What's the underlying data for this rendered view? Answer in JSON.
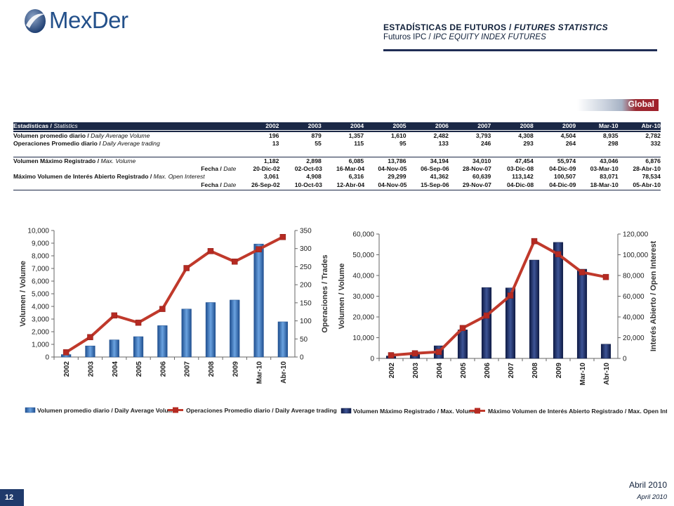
{
  "logo": {
    "text": "MexDer"
  },
  "header": {
    "title_es": "ESTADÍSTICAS DE FUTUROS",
    "title_en": "FUTURES STATISTICS",
    "subtitle_es": "Futuros IPC",
    "subtitle_en": "IPC EQUITY INDEX FUTURES",
    "separator": " / "
  },
  "global_tab": "Global",
  "stats_table": {
    "header_label_es": "Estadísticas / ",
    "header_label_en": "Statistics",
    "columns": [
      "2002",
      "2003",
      "2004",
      "2005",
      "2006",
      "2007",
      "2008",
      "2009",
      "Mar-10",
      "Abr-10"
    ],
    "rows": [
      {
        "label_es": "Volumen promedio diario / ",
        "label_en": "Daily Average Volume",
        "values": [
          "196",
          "879",
          "1,357",
          "1,610",
          "2,482",
          "3,793",
          "4,308",
          "4,504",
          "8,935",
          "2,782"
        ]
      },
      {
        "label_es": "Operaciones Promedio diario / ",
        "label_en": "Daily Average trading",
        "values": [
          "13",
          "55",
          "115",
          "95",
          "133",
          "246",
          "293",
          "264",
          "298",
          "332"
        ]
      },
      {
        "label_es": "Volumen Máximo Registrado / ",
        "label_en": "Max. Volume",
        "values": [
          "1,182",
          "2,898",
          "6,085",
          "13,786",
          "34,194",
          "34,010",
          "47,454",
          "55,974",
          "43,046",
          "6,876"
        ]
      },
      {
        "label_es": "Fecha / ",
        "label_en": "Date",
        "values": [
          "20-Dic-02",
          "02-Oct-03",
          "16-Mar-04",
          "04-Nov-05",
          "06-Sep-06",
          "28-Nov-07",
          "03-Dic-08",
          "04-Dic-09",
          "03-Mar-10",
          "28-Abr-10"
        ]
      },
      {
        "label_es": "Máximo Volumen de Interés Abierto Registrado / ",
        "label_en": "Max. Open Interest",
        "values": [
          "3,061",
          "4,908",
          "6,316",
          "29,299",
          "41,362",
          "60,639",
          "113,142",
          "100,507",
          "83,071",
          "78,534"
        ]
      },
      {
        "label_es": "Fecha / ",
        "label_en": "Date",
        "values": [
          "26-Sep-02",
          "10-Oct-03",
          "12-Abr-04",
          "04-Nov-05",
          "15-Sep-06",
          "29-Nov-07",
          "04-Dic-08",
          "04-Dic-09",
          "18-Mar-10",
          "05-Abr-10"
        ]
      }
    ]
  },
  "chart_data": [
    {
      "type": "bar",
      "categories": [
        "2002",
        "2003",
        "2004",
        "2005",
        "2006",
        "2007",
        "2008",
        "2009",
        "Mar-10",
        "Abr-10"
      ],
      "series": [
        {
          "name": "Volumen promedio diario / Daily Average Volume",
          "kind": "bar",
          "axis": "left",
          "values": [
            196,
            879,
            1357,
            1610,
            2482,
            3793,
            4308,
            4504,
            8935,
            2782
          ]
        },
        {
          "name": "Operaciones Promedio diario / Daily Average trading",
          "kind": "line",
          "axis": "right",
          "values": [
            13,
            55,
            115,
            95,
            133,
            246,
            293,
            264,
            298,
            332
          ]
        }
      ],
      "ylabel": "Volumen / Volume",
      "y2label": "Operaciones / Trades",
      "ylim": [
        0,
        10000
      ],
      "y2lim": [
        0,
        350
      ],
      "yticks": [
        "0",
        "1,000",
        "2,000",
        "3,000",
        "4,000",
        "5,000",
        "6,000",
        "7,000",
        "8,000",
        "9,000",
        "10,000"
      ],
      "y2ticks": [
        "0",
        "50",
        "100",
        "150",
        "200",
        "250",
        "300",
        "350"
      ],
      "legend_position": "bottom",
      "colors": {
        "bar": "#2e6fb8",
        "line": "#c0392b"
      }
    },
    {
      "type": "bar",
      "categories": [
        "2002",
        "2003",
        "2004",
        "2005",
        "2006",
        "2007",
        "2008",
        "2009",
        "Mar-10",
        "Abr-10"
      ],
      "series": [
        {
          "name": "Volumen Máximo Registrado / Max. Volume",
          "kind": "bar",
          "axis": "left",
          "values": [
            1182,
            2898,
            6085,
            13786,
            34194,
            34010,
            47454,
            55974,
            43046,
            6876
          ]
        },
        {
          "name": "Máximo Volumen de Interés Abierto Registrado / Max. Open Interes",
          "kind": "line",
          "axis": "right",
          "values": [
            3061,
            4908,
            6316,
            29299,
            41362,
            60639,
            113142,
            100507,
            83071,
            78534
          ]
        }
      ],
      "ylabel": "Volumen / Volume",
      "y2label": "Interés Abierto / Open Interest",
      "ylim": [
        0,
        60000
      ],
      "y2lim": [
        0,
        120000
      ],
      "yticks": [
        "0",
        "10,000",
        "20,000",
        "30,000",
        "40,000",
        "50,000",
        "60,000"
      ],
      "y2ticks": [
        "0",
        "20,000",
        "40,000",
        "60,000",
        "80,000",
        "100,000",
        "120,000"
      ],
      "legend_position": "bottom",
      "colors": {
        "bar": "#1b2a5a",
        "line": "#c0392b"
      }
    }
  ],
  "footer": {
    "page_number": "12",
    "date_es": "Abril 2010",
    "date_en": "April 2010"
  }
}
